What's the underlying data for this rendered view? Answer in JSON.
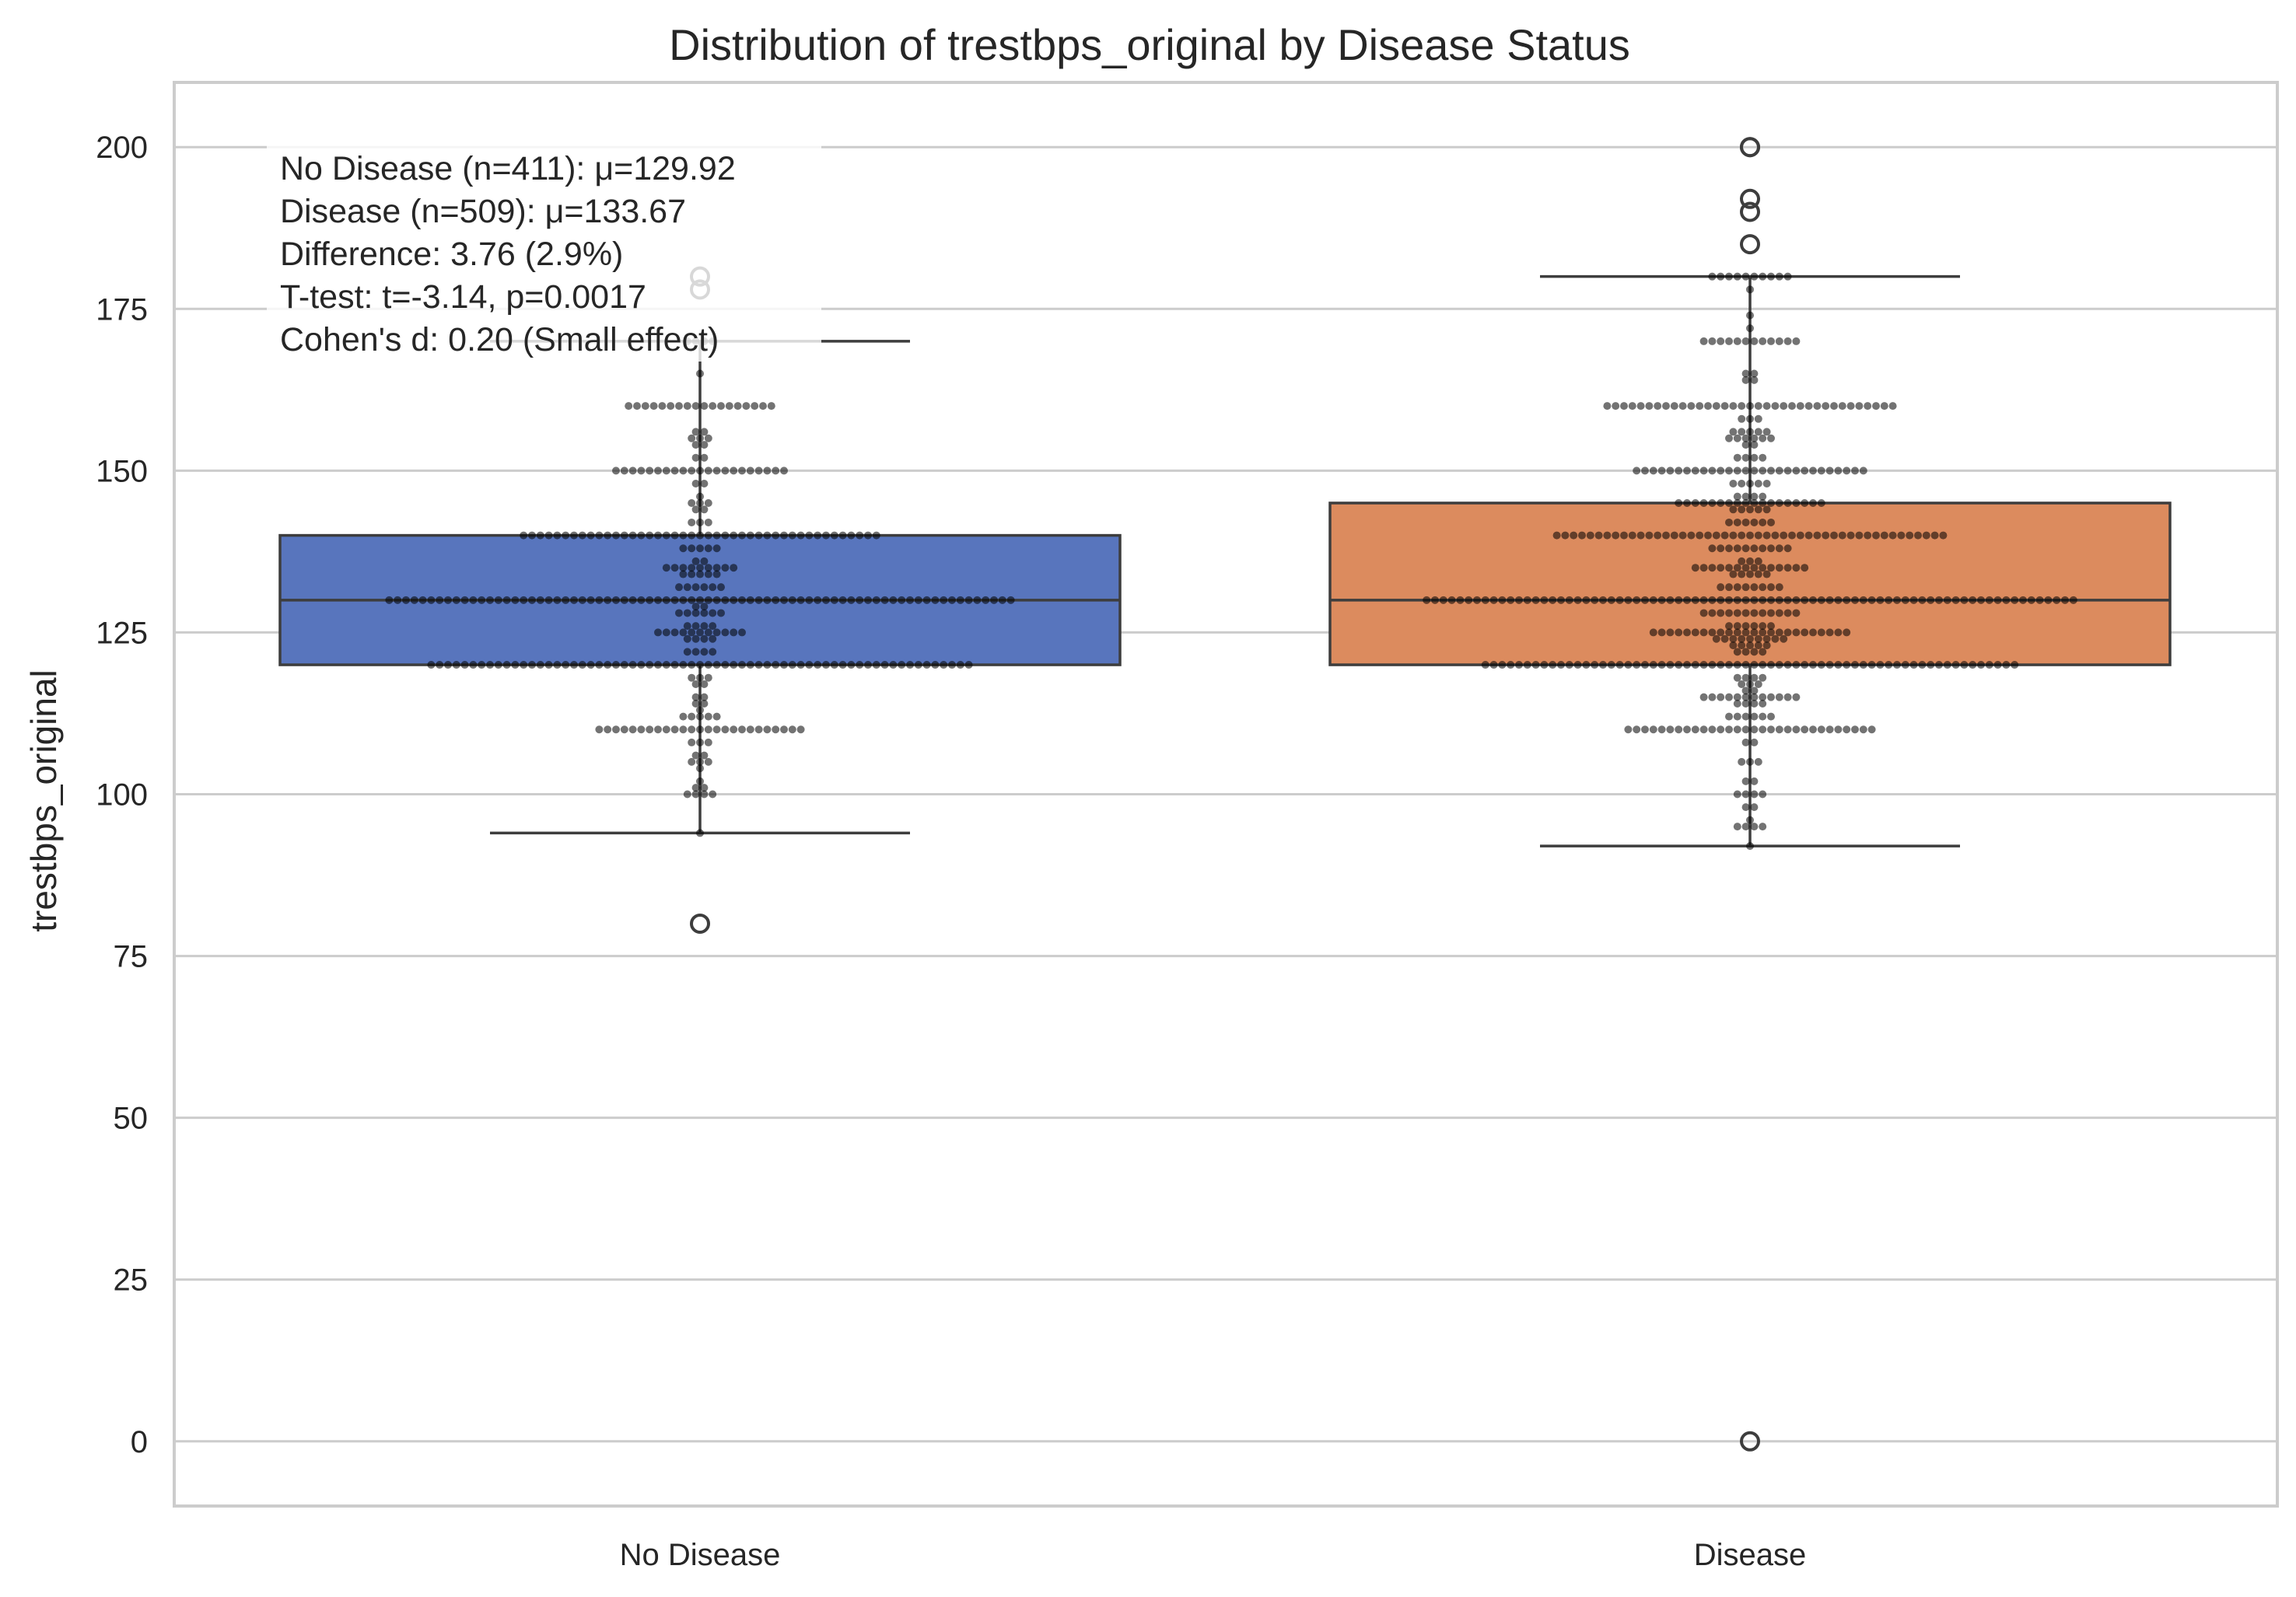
{
  "chart_data": {
    "type": "box",
    "title": "Distribution of trestbps_original by Disease Status",
    "xlabel": "",
    "ylabel": "trestbps_original",
    "ylim": [
      -10,
      210
    ],
    "yticks": [
      0,
      25,
      50,
      75,
      100,
      125,
      150,
      175,
      200
    ],
    "categories": [
      "No Disease",
      "Disease"
    ],
    "grid": "horizontal",
    "series": [
      {
        "category": "No Disease",
        "color": "#5875bd",
        "n": 411,
        "box": {
          "whisker_low": 94,
          "q1": 120,
          "median": 130,
          "q3": 140,
          "whisker_high": 170
        },
        "outliers": [
          80,
          178,
          180
        ],
        "strip_levels": [
          {
            "v": 94,
            "c": 1
          },
          {
            "v": 100,
            "c": 4
          },
          {
            "v": 101,
            "c": 2
          },
          {
            "v": 102,
            "c": 1
          },
          {
            "v": 104,
            "c": 1
          },
          {
            "v": 105,
            "c": 3
          },
          {
            "v": 106,
            "c": 2
          },
          {
            "v": 108,
            "c": 3
          },
          {
            "v": 110,
            "c": 25
          },
          {
            "v": 112,
            "c": 5
          },
          {
            "v": 113,
            "c": 1
          },
          {
            "v": 114,
            "c": 2
          },
          {
            "v": 115,
            "c": 2
          },
          {
            "v": 117,
            "c": 2
          },
          {
            "v": 118,
            "c": 3
          },
          {
            "v": 120,
            "c": 65
          },
          {
            "v": 122,
            "c": 4
          },
          {
            "v": 124,
            "c": 4
          },
          {
            "v": 125,
            "c": 11
          },
          {
            "v": 126,
            "c": 4
          },
          {
            "v": 128,
            "c": 6
          },
          {
            "v": 129,
            "c": 2
          },
          {
            "v": 130,
            "c": 75
          },
          {
            "v": 132,
            "c": 6
          },
          {
            "v": 134,
            "c": 5
          },
          {
            "v": 135,
            "c": 9
          },
          {
            "v": 136,
            "c": 2
          },
          {
            "v": 138,
            "c": 5
          },
          {
            "v": 140,
            "c": 43
          },
          {
            "v": 142,
            "c": 3
          },
          {
            "v": 144,
            "c": 2
          },
          {
            "v": 145,
            "c": 3
          },
          {
            "v": 146,
            "c": 1
          },
          {
            "v": 148,
            "c": 2
          },
          {
            "v": 150,
            "c": 21
          },
          {
            "v": 152,
            "c": 2
          },
          {
            "v": 154,
            "c": 2
          },
          {
            "v": 155,
            "c": 3
          },
          {
            "v": 156,
            "c": 2
          },
          {
            "v": 160,
            "c": 18
          },
          {
            "v": 165,
            "c": 1
          },
          {
            "v": 170,
            "c": 4
          }
        ]
      },
      {
        "category": "Disease",
        "color": "#dc8b5e",
        "n": 509,
        "box": {
          "whisker_low": 92,
          "q1": 120,
          "median": 130,
          "q3": 145,
          "whisker_high": 180
        },
        "outliers": [
          0,
          185,
          190,
          192,
          200,
          200
        ],
        "strip_levels": [
          {
            "v": 92,
            "c": 1
          },
          {
            "v": 95,
            "c": 4
          },
          {
            "v": 96,
            "c": 1
          },
          {
            "v": 98,
            "c": 2
          },
          {
            "v": 100,
            "c": 4
          },
          {
            "v": 102,
            "c": 2
          },
          {
            "v": 105,
            "c": 3
          },
          {
            "v": 108,
            "c": 2
          },
          {
            "v": 110,
            "c": 30
          },
          {
            "v": 112,
            "c": 6
          },
          {
            "v": 114,
            "c": 4
          },
          {
            "v": 115,
            "c": 12
          },
          {
            "v": 116,
            "c": 2
          },
          {
            "v": 117,
            "c": 3
          },
          {
            "v": 118,
            "c": 4
          },
          {
            "v": 120,
            "c": 64
          },
          {
            "v": 122,
            "c": 4
          },
          {
            "v": 123,
            "c": 5
          },
          {
            "v": 124,
            "c": 9
          },
          {
            "v": 125,
            "c": 24
          },
          {
            "v": 126,
            "c": 6
          },
          {
            "v": 128,
            "c": 12
          },
          {
            "v": 130,
            "c": 78
          },
          {
            "v": 132,
            "c": 8
          },
          {
            "v": 134,
            "c": 5
          },
          {
            "v": 135,
            "c": 14
          },
          {
            "v": 136,
            "c": 3
          },
          {
            "v": 138,
            "c": 10
          },
          {
            "v": 140,
            "c": 47
          },
          {
            "v": 142,
            "c": 6
          },
          {
            "v": 144,
            "c": 5
          },
          {
            "v": 145,
            "c": 18
          },
          {
            "v": 146,
            "c": 4
          },
          {
            "v": 148,
            "c": 5
          },
          {
            "v": 150,
            "c": 28
          },
          {
            "v": 152,
            "c": 4
          },
          {
            "v": 154,
            "c": 2
          },
          {
            "v": 155,
            "c": 6
          },
          {
            "v": 156,
            "c": 5
          },
          {
            "v": 158,
            "c": 3
          },
          {
            "v": 160,
            "c": 35
          },
          {
            "v": 164,
            "c": 2
          },
          {
            "v": 165,
            "c": 2
          },
          {
            "v": 170,
            "c": 12
          },
          {
            "v": 172,
            "c": 1
          },
          {
            "v": 174,
            "c": 1
          },
          {
            "v": 178,
            "c": 1
          },
          {
            "v": 180,
            "c": 10
          }
        ]
      }
    ],
    "annotation": [
      "No Disease (n=411): μ=129.92",
      "Disease (n=509): μ=133.67",
      "Difference: 3.76 (2.9%)",
      "T-test: t=-3.14, p=0.0017",
      "Cohen's d: 0.20 (Small effect)"
    ]
  }
}
